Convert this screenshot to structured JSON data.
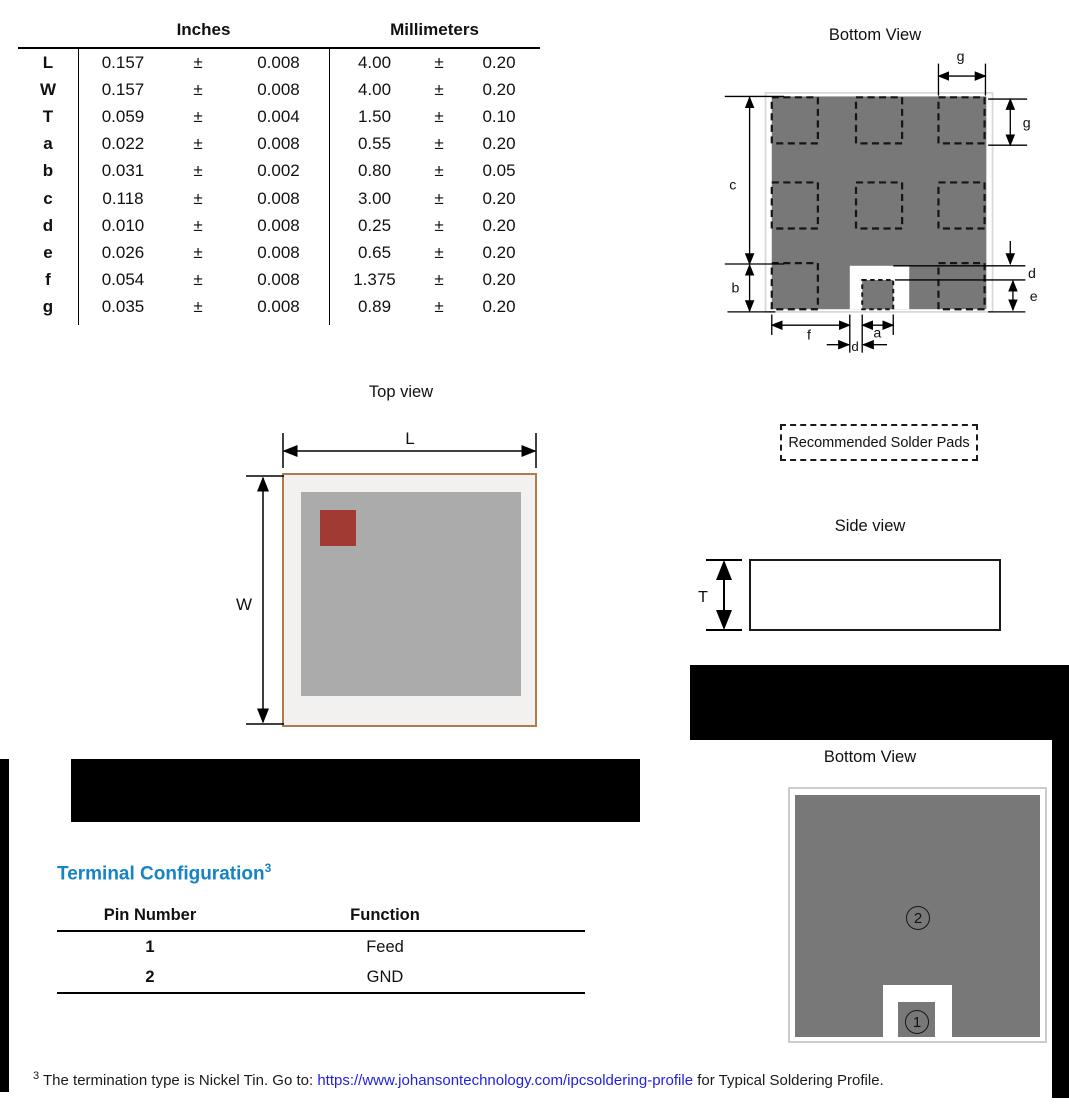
{
  "dimensions_table": {
    "col_headers": {
      "inches": "Inches",
      "millimeters": "Millimeters"
    },
    "pm": "±",
    "rows": [
      {
        "label": "L",
        "inch": "0.157",
        "inch_tol": "0.008",
        "mm": "4.00",
        "mm_tol": "0.20"
      },
      {
        "label": "W",
        "inch": "0.157",
        "inch_tol": "0.008",
        "mm": "4.00",
        "mm_tol": "0.20"
      },
      {
        "label": "T",
        "inch": "0.059",
        "inch_tol": "0.004",
        "mm": "1.50",
        "mm_tol": "0.10"
      },
      {
        "label": "a",
        "inch": "0.022",
        "inch_tol": "0.008",
        "mm": "0.55",
        "mm_tol": "0.20"
      },
      {
        "label": "b",
        "inch": "0.031",
        "inch_tol": "0.002",
        "mm": "0.80",
        "mm_tol": "0.05"
      },
      {
        "label": "c",
        "inch": "0.118",
        "inch_tol": "0.008",
        "mm": "3.00",
        "mm_tol": "0.20"
      },
      {
        "label": "d",
        "inch": "0.010",
        "inch_tol": "0.008",
        "mm": "0.25",
        "mm_tol": "0.20"
      },
      {
        "label": "e",
        "inch": "0.026",
        "inch_tol": "0.008",
        "mm": "0.65",
        "mm_tol": "0.20"
      },
      {
        "label": "f",
        "inch": "0.054",
        "inch_tol": "0.008",
        "mm": "1.375",
        "mm_tol": "0.20"
      },
      {
        "label": "g",
        "inch": "0.035",
        "inch_tol": "0.008",
        "mm": "0.89",
        "mm_tol": "0.20"
      }
    ]
  },
  "diagrams": {
    "bottom_view_solder": {
      "title": "Bottom View",
      "legend": "Recommended Solder Pads",
      "dim_labels": {
        "g_top": "g",
        "g_right": "g",
        "c": "c",
        "b": "b",
        "d_right": "d",
        "e": "e",
        "f": "f",
        "a": "a",
        "d_bottom": "d"
      }
    },
    "top_view": {
      "title": "Top view",
      "dim_l": "L",
      "dim_w": "W"
    },
    "side_view": {
      "title": "Side view",
      "dim_t": "T"
    },
    "bottom_view_pins": {
      "title": "Bottom View",
      "pin_ground": "2",
      "pin_feed": "1"
    }
  },
  "terminal_configuration": {
    "heading": "Terminal Configuration",
    "heading_sup": "3",
    "table": {
      "headers": {
        "pin": "Pin Number",
        "function": "Function"
      },
      "rows": [
        {
          "pin": "1",
          "function": "Feed"
        },
        {
          "pin": "2",
          "function": "GND"
        }
      ]
    }
  },
  "footnote": {
    "sup": "3",
    "prefix": " The termination type is Nickel Tin. Go to: ",
    "link": "https://www.johansontechnology.com/ipcsoldering-profile",
    "suffix": " for Typical Soldering Profile."
  },
  "colors": {
    "heading_blue": "#1583c5",
    "link_blue": "#1f1fe0",
    "ground_gray": "#787878",
    "chip_top_gray": "#ababab",
    "red_marker": "#a23a34",
    "board_tan": "#b07c4a"
  }
}
